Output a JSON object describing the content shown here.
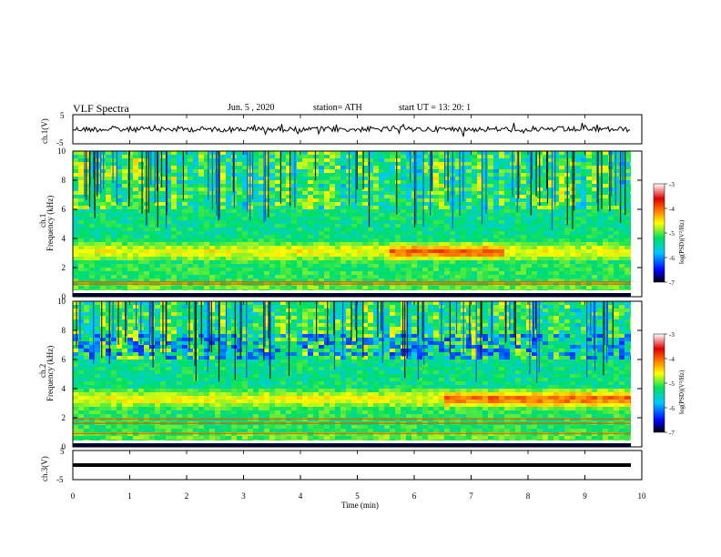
{
  "header": {
    "title": "VLF  Spectra",
    "date": "Jun. 5  , 2020",
    "station": "station= ATH",
    "start": "start  UT  =    13: 20: 1"
  },
  "chart_data": [
    {
      "type": "line",
      "ylabel": "ch.1(V)",
      "ylim": [
        -5,
        5
      ],
      "yticks": [
        "5",
        "-5"
      ],
      "xlim": [
        0,
        10
      ],
      "note": "noisy waveform around 0 V"
    },
    {
      "type": "heatmap",
      "ylabel": "Frequency (kHz)",
      "channel_label": "ch.1",
      "ylim": [
        0,
        10
      ],
      "yticks": [
        "0",
        "2",
        "4",
        "6",
        "8",
        "10"
      ],
      "xlim": [
        0,
        10
      ],
      "colorbar": {
        "label": "log(PSD)(V²/Hz)",
        "ticks": [
          "-3",
          "-4",
          "-5",
          "-6",
          "-7"
        ],
        "range": [
          -7,
          -3
        ]
      },
      "bands_khz": [
        0.3,
        0.85,
        1.0
      ],
      "strong_band": {
        "center_khz": 3.2,
        "peak_time_min": [
          5.5,
          7.5
        ]
      }
    },
    {
      "type": "heatmap",
      "ylabel": "Frequency (kHz)",
      "channel_label": "ch.2",
      "ylim": [
        0,
        10
      ],
      "yticks": [
        "0",
        "2",
        "4",
        "6",
        "8",
        "10"
      ],
      "xlim": [
        0,
        10
      ],
      "colorbar": {
        "label": "log(PSD)(V²/Hz)",
        "ticks": [
          "-3",
          "-4",
          "-5",
          "-6",
          "-7"
        ],
        "range": [
          -7,
          -3
        ]
      },
      "bands_khz": [
        0.3,
        0.9,
        1.6,
        1.9
      ],
      "strong_band": {
        "center_khz": 3.4,
        "peak_time_min": [
          6.5,
          9.8
        ]
      }
    },
    {
      "type": "line",
      "ylabel": "ch.3(V)",
      "ylim": [
        -5,
        5
      ],
      "yticks": [
        "5",
        "-5"
      ],
      "xlim": [
        0,
        10
      ],
      "xlabel": "Time  (min)",
      "xticks": [
        "0",
        "1",
        "2",
        "3",
        "4",
        "5",
        "6",
        "7",
        "8",
        "9",
        "10"
      ],
      "note": "flat near -2 V"
    }
  ],
  "colors": {
    "frame": "#000000",
    "colormap": [
      "#000000",
      "#0000ff",
      "#00c8ff",
      "#00e060",
      "#ffff00",
      "#ff8000",
      "#e00000",
      "#ffffff"
    ]
  }
}
